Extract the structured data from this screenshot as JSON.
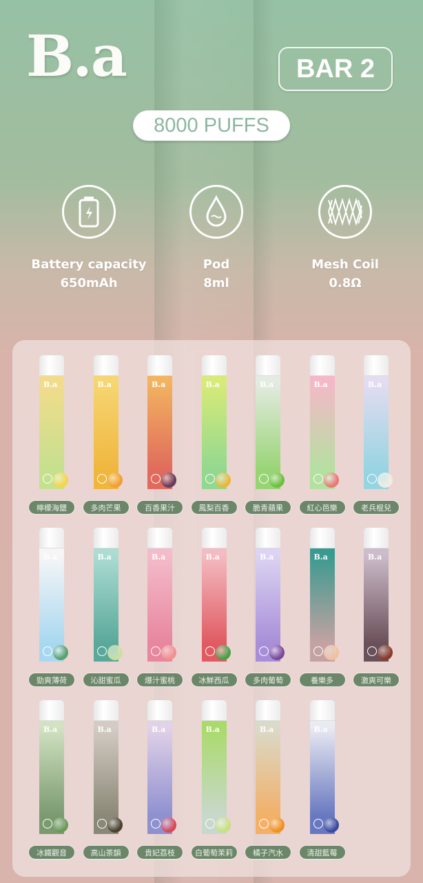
{
  "brand": {
    "logo": "B.a",
    "model": "BAR 2",
    "puffs": "8000 PUFFS"
  },
  "specs": [
    {
      "icon": "battery-icon",
      "label": "Battery capacity",
      "value": "650mAh"
    },
    {
      "icon": "droplet-icon",
      "label": "Pod",
      "value": "8ml"
    },
    {
      "icon": "mesh-coil-icon",
      "label": "Mesh Coil",
      "value": "0.8Ω"
    }
  ],
  "flavors": [
    {
      "name": "檸檬海鹽",
      "colors": [
        "#f2dc8c",
        "#c5e08e"
      ],
      "fruit": "#f2d64a"
    },
    {
      "name": "多肉芒果",
      "colors": [
        "#f6d672",
        "#f0b63e"
      ],
      "fruit": "#f0a030"
    },
    {
      "name": "百香果汁",
      "colors": [
        "#f2b460",
        "#e06a5c"
      ],
      "fruit": "#6a3a5a"
    },
    {
      "name": "鳳梨百香",
      "colors": [
        "#d8ea78",
        "#92d890"
      ],
      "fruit": "#e8b838"
    },
    {
      "name": "脆青蘋果",
      "colors": [
        "#e4ebe2",
        "#98d474"
      ],
      "fruit": "#6cc040"
    },
    {
      "name": "紅心芭樂",
      "colors": [
        "#f4b8c8",
        "#b4e0a0"
      ],
      "fruit": "#e87878"
    },
    {
      "name": "老兵棍兒",
      "colors": [
        "#e4dcf0",
        "#96d4e2"
      ],
      "fruit": "#f0ece0"
    },
    {
      "name": "勁爽薄荷",
      "colors": [
        "#f6f6f6",
        "#a8d8f0"
      ],
      "fruit": "#5aa070"
    },
    {
      "name": "沁甜蜜瓜",
      "colors": [
        "#acdcd2",
        "#5aa89a"
      ],
      "fruit": "#c8e0a0"
    },
    {
      "name": "爆汁蜜桃",
      "colors": [
        "#f4bccb",
        "#e8869e"
      ],
      "fruit": "#f09090"
    },
    {
      "name": "冰鮮西瓜",
      "colors": [
        "#f4bcc2",
        "#e05a62"
      ],
      "fruit": "#48a048"
    },
    {
      "name": "多肉葡萄",
      "colors": [
        "#dcd4f2",
        "#a88ed8"
      ],
      "fruit": "#7a4a9a"
    },
    {
      "name": "養樂多",
      "colors": [
        "#3a9a90",
        "#c4a2a2"
      ],
      "fruit": "#f0c0a0"
    },
    {
      "name": "激爽可樂",
      "colors": [
        "#cdbccb",
        "#6a5058"
      ],
      "fruit": "#8a3a2a"
    },
    {
      "name": "冰鐵觀音",
      "colors": [
        "#d2e2c2",
        "#7a9a70"
      ],
      "fruit": "#6a9a5a"
    },
    {
      "name": "高山茶韻",
      "colors": [
        "#d4ccc4",
        "#8a8876"
      ],
      "fruit": "#4a4030"
    },
    {
      "name": "貴妃荔枝",
      "colors": [
        "#e2d2e8",
        "#8e90d0"
      ],
      "fruit": "#d84858"
    },
    {
      "name": "白葡萄茉莉",
      "colors": [
        "#aada6a",
        "#c8d8cc"
      ],
      "fruit": "#c8e080"
    },
    {
      "name": "橘子汽水",
      "colors": [
        "#dadaca",
        "#f2b068"
      ],
      "fruit": "#f09020"
    },
    {
      "name": "清甜藍莓",
      "colors": [
        "#eaeaf2",
        "#6878c0"
      ],
      "fruit": "#3a4aa0"
    }
  ]
}
